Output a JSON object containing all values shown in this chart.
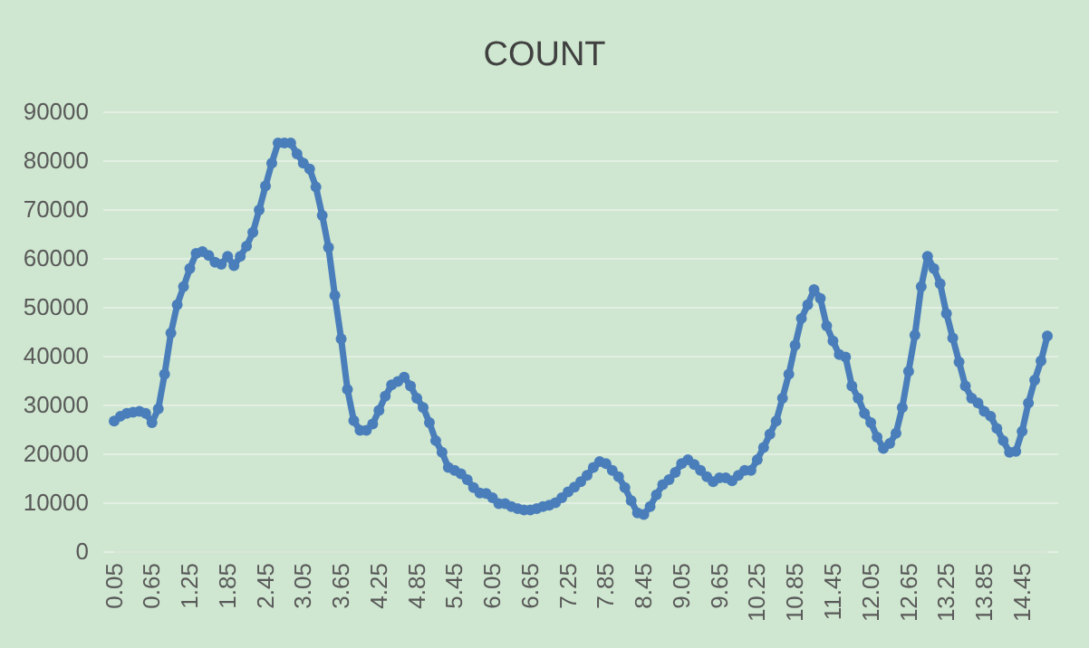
{
  "chart_data": {
    "type": "line",
    "title": "COUNT",
    "categories": [
      "0.05",
      null,
      null,
      null,
      null,
      null,
      "0.65",
      null,
      null,
      null,
      null,
      null,
      "1.25",
      null,
      null,
      null,
      null,
      null,
      "1.85",
      null,
      null,
      null,
      null,
      null,
      "2.45",
      null,
      null,
      null,
      null,
      null,
      "3.05",
      null,
      null,
      null,
      null,
      null,
      "3.65",
      null,
      null,
      null,
      null,
      null,
      "4.25",
      null,
      null,
      null,
      null,
      null,
      "4.85",
      null,
      null,
      null,
      null,
      null,
      "5.45",
      null,
      null,
      null,
      null,
      null,
      "6.05",
      null,
      null,
      null,
      null,
      null,
      "6.65",
      null,
      null,
      null,
      null,
      null,
      "7.25",
      null,
      null,
      null,
      null,
      null,
      "7.85",
      null,
      null,
      null,
      null,
      null,
      "8.45",
      null,
      null,
      null,
      null,
      null,
      "9.05",
      null,
      null,
      null,
      null,
      null,
      "9.65",
      null,
      null,
      null,
      null,
      null,
      "10.25",
      null,
      null,
      null,
      null,
      null,
      "10.85",
      null,
      null,
      null,
      null,
      null,
      "11.45",
      null,
      null,
      null,
      null,
      null,
      "12.05",
      null,
      null,
      null,
      null,
      null,
      "12.65",
      null,
      null,
      null,
      null,
      null,
      "13.25",
      null,
      null,
      null,
      null,
      null,
      "13.85",
      null,
      null,
      null,
      null,
      null,
      "14.45",
      null,
      null,
      null,
      null
    ],
    "series": [
      {
        "color": "#4a7ebb",
        "values": [
          26800,
          27800,
          28400,
          28600,
          28800,
          28400,
          26500,
          29300,
          36400,
          44800,
          50600,
          54300,
          58000,
          61100,
          61500,
          60700,
          59300,
          58900,
          60500,
          58600,
          60500,
          62600,
          65400,
          70000,
          74900,
          79600,
          83700,
          83700,
          83700,
          81500,
          79600,
          78400,
          74700,
          68900,
          62300,
          52500,
          43600,
          33300,
          26900,
          24900,
          24900,
          26200,
          29000,
          31900,
          34200,
          34900,
          35800,
          34000,
          31500,
          29600,
          26500,
          22800,
          20400,
          17300,
          16700,
          16000,
          14800,
          13200,
          12100,
          12000,
          11100,
          9900,
          9900,
          9300,
          8900,
          8600,
          8600,
          8900,
          9300,
          9600,
          10100,
          11100,
          12300,
          13300,
          14400,
          15700,
          17300,
          18500,
          18100,
          16700,
          15400,
          13200,
          10500,
          8000,
          7700,
          9300,
          11700,
          13800,
          14800,
          16300,
          18100,
          18900,
          17900,
          16700,
          15400,
          14400,
          15200,
          15200,
          14600,
          15700,
          16700,
          16700,
          18900,
          21400,
          24100,
          26800,
          31500,
          36400,
          42300,
          47800,
          50600,
          53700,
          51900,
          46300,
          43200,
          40400,
          39900,
          34000,
          31500,
          28400,
          26500,
          23500,
          21200,
          22200,
          24300,
          29600,
          37000,
          44400,
          54300,
          60500,
          58000,
          54900,
          48800,
          43800,
          38900,
          34000,
          31500,
          30500,
          28800,
          27800,
          25300,
          22800,
          20400,
          20600,
          24700,
          30500,
          35200,
          39100,
          44200
        ]
      }
    ],
    "ylim": [
      0,
      90000
    ],
    "yticks": [
      0,
      10000,
      20000,
      30000,
      40000,
      50000,
      60000,
      70000,
      80000,
      90000
    ],
    "grid": "y",
    "marker": "circle",
    "line_style": "solid"
  }
}
